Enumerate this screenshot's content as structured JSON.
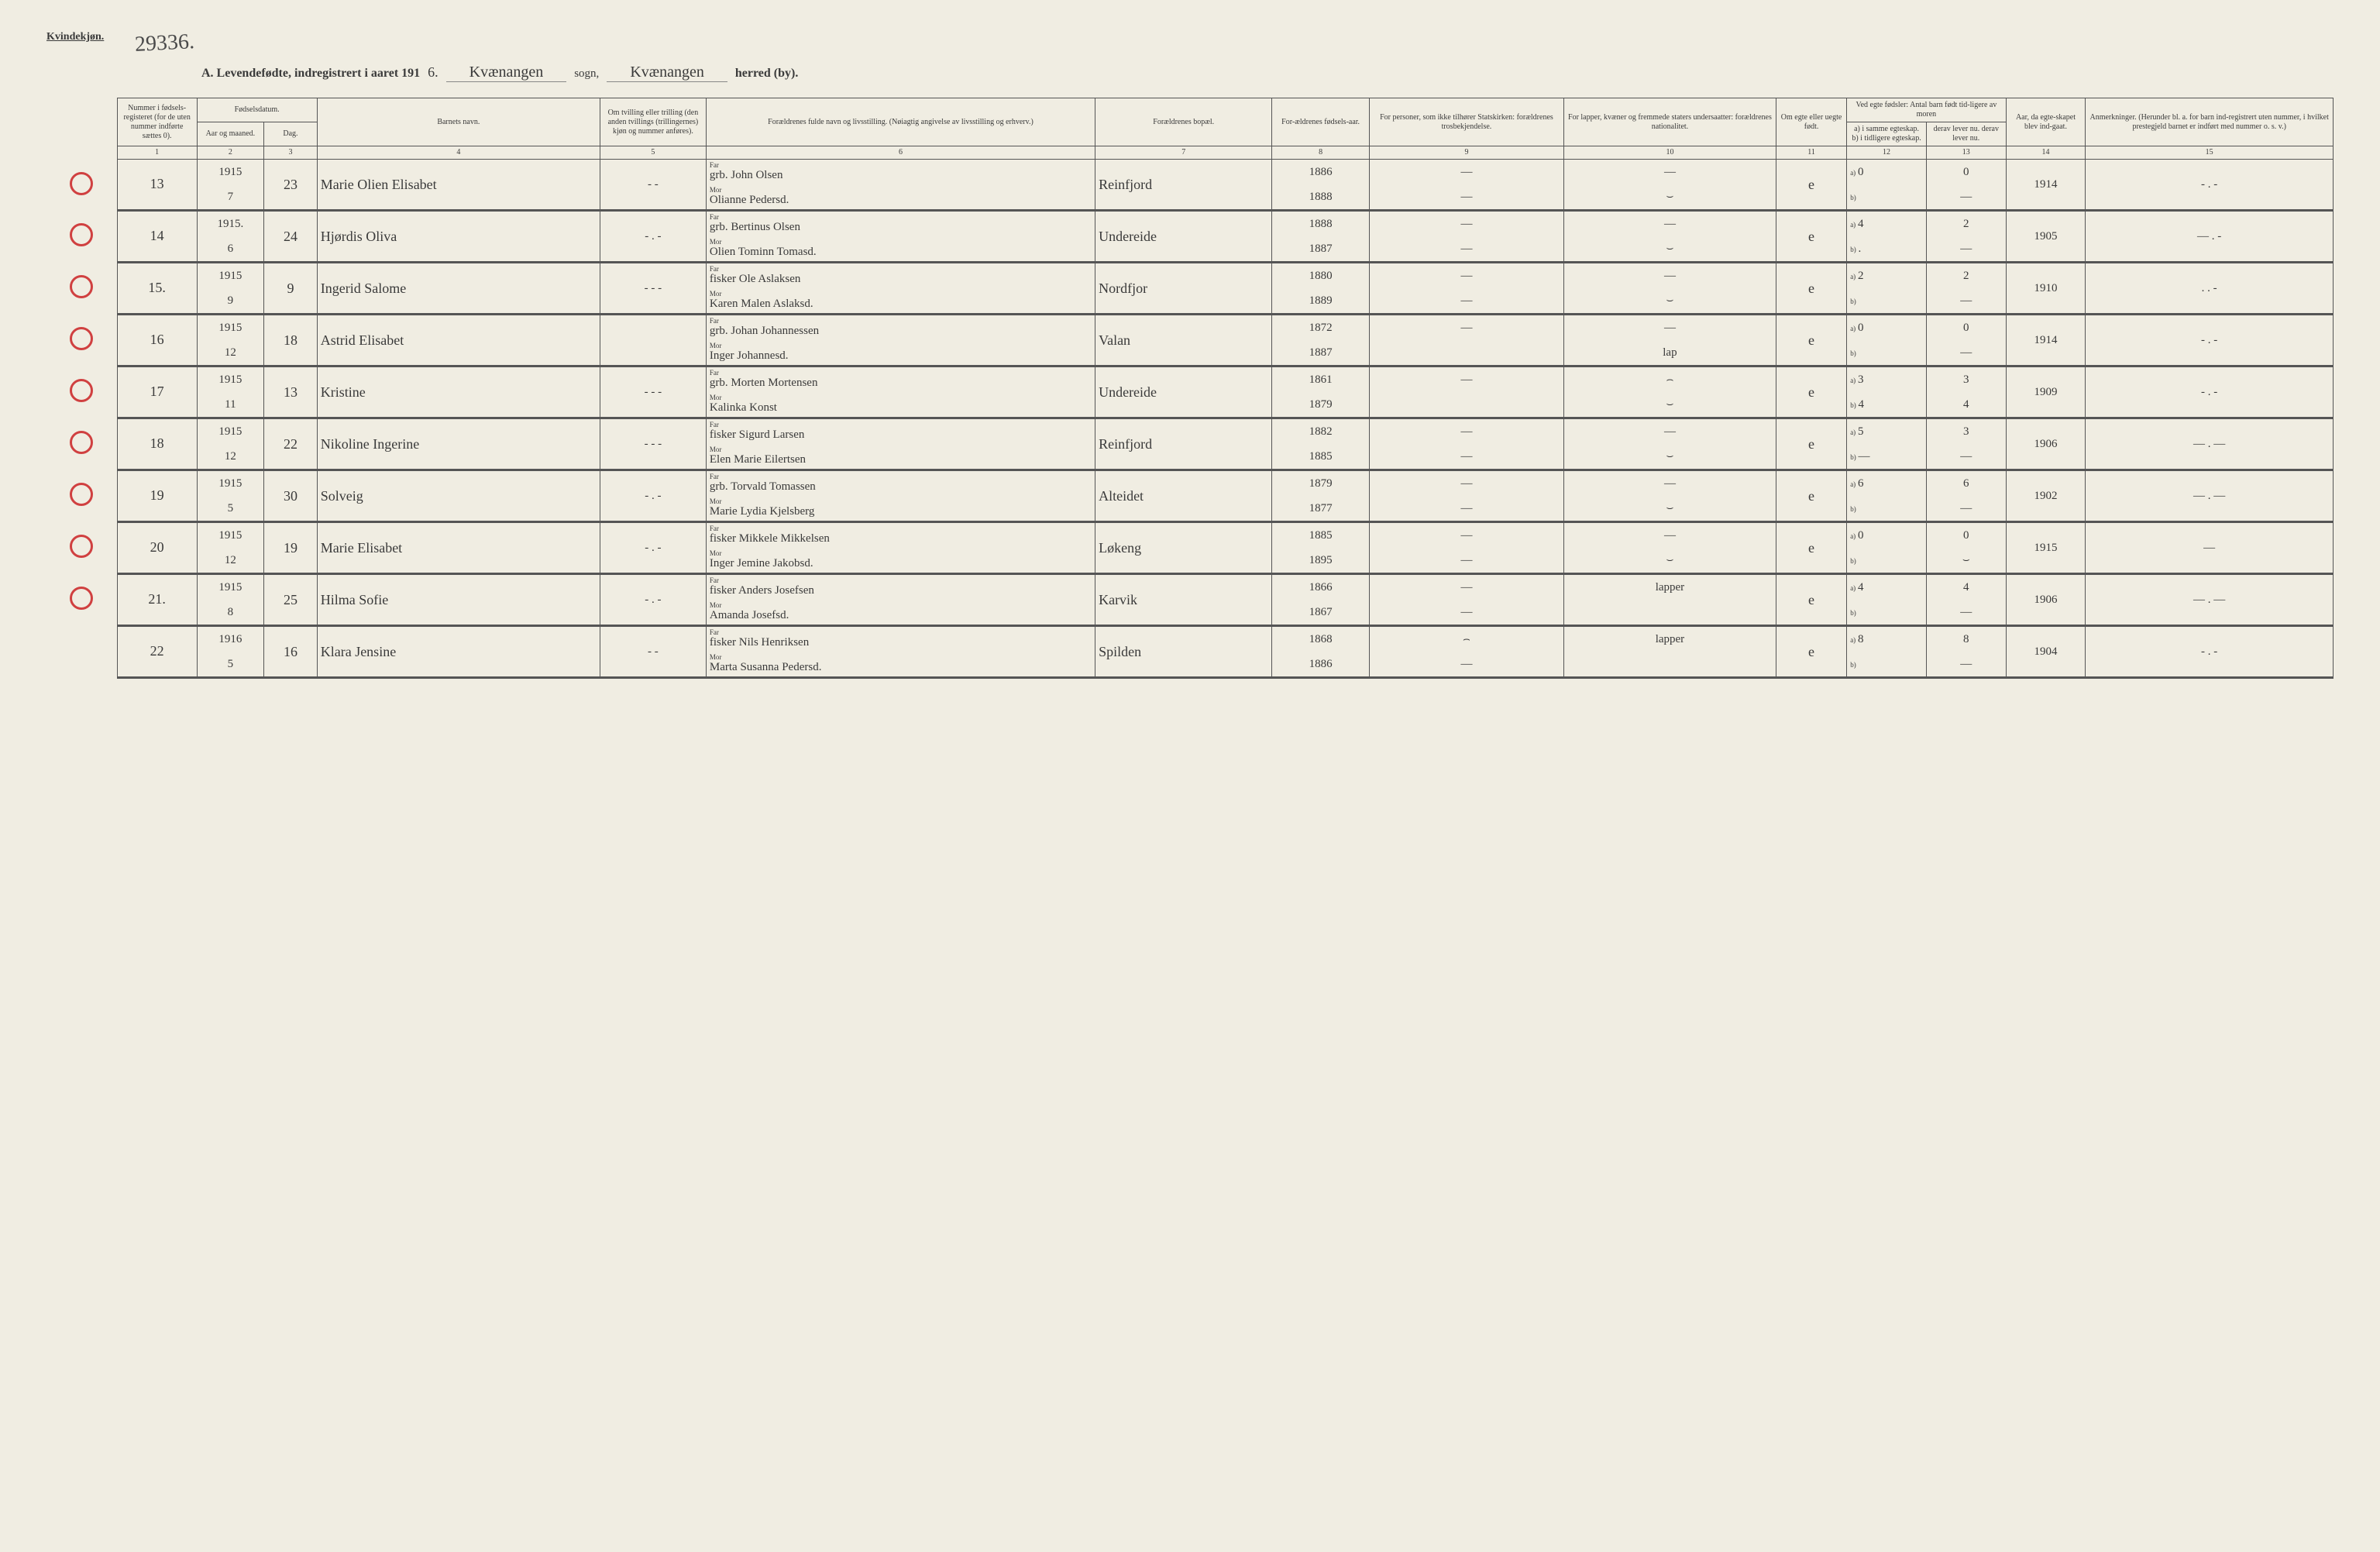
{
  "header": {
    "kvindekjon": "Kvindekjøn.",
    "stamp_number": "29336.",
    "title_prefix": "A.  Levendefødte, indregistrert i aaret 191",
    "year_suffix": "6.",
    "sogn_value": "Kvænangen",
    "sogn_label": "sogn,",
    "herred_value": "Kvænangen",
    "herred_label": "herred (by)."
  },
  "columns": {
    "c1": "Nummer i fødsels-registeret (for de uten nummer indførte sættes 0).",
    "c2_group": "Fødselsdatum.",
    "c2": "Aar og maaned.",
    "c3": "Dag.",
    "c4": "Barnets navn.",
    "c5": "Om tvilling eller trilling (den anden tvillings (trillingernes) kjøn og nummer anføres).",
    "c6": "Forældrenes fulde navn og livsstilling. (Nøiagtig angivelse av livsstilling og erhverv.)",
    "c7": "Forældrenes bopæl.",
    "c8": "For-ældrenes fødsels-aar.",
    "c9": "For personer, som ikke tilhører Statskirken: forældrenes trosbekjendelse.",
    "c10": "For lapper, kvæner og fremmede staters undersaatter: forældrenes nationalitet.",
    "c11": "Om egte eller uegte født.",
    "c12_group": "Ved egte fødsler: Antal barn født tid-ligere av moren",
    "c12": "a) i samme egteskap.  b) i tidligere egteskap.",
    "c13": "derav lever nu.  derav lever nu.",
    "c14": "Aar, da egte-skapet blev ind-gaat.",
    "c15": "Anmerkninger. (Herunder bl. a. for barn ind-registrert uten nummer, i hvilket prestegjeld barnet er indført med nummer o. s. v.)"
  },
  "colnums": [
    "1",
    "2",
    "3",
    "4",
    "5",
    "6",
    "7",
    "8",
    "9",
    "10",
    "11",
    "12",
    "13",
    "14",
    "15"
  ],
  "far_label": "Far",
  "mor_label": "Mor",
  "a_label": "a)",
  "b_label": "b)",
  "rows": [
    {
      "num": "13",
      "year": "1915",
      "month": "7",
      "day": "23",
      "name": "Marie Olien Elisabet",
      "twin": "- -",
      "far": "grb. John Olsen",
      "mor": "Olianne Pedersd.",
      "bopael": "Reinfjord",
      "far_aar": "1886",
      "mor_aar": "1888",
      "c9f": "—",
      "c9m": "—",
      "c10f": "—",
      "c10m": "⌣",
      "egte": "e",
      "a12": "0",
      "a13": "0",
      "b12": "",
      "b13": "—",
      "c14": "1914",
      "c15": "- . -",
      "circle": true
    },
    {
      "num": "14",
      "year": "1915.",
      "month": "6",
      "day": "24",
      "name": "Hjørdis Oliva",
      "twin": "- . -",
      "far": "grb. Bertinus Olsen",
      "mor": "Olien Tominn Tomasd.",
      "bopael": "Undereide",
      "far_aar": "1888",
      "mor_aar": "1887",
      "c9f": "—",
      "c9m": "—",
      "c10f": "—",
      "c10m": "⌣",
      "egte": "e",
      "a12": "4",
      "a13": "2",
      "b12": ".",
      "b13": "—",
      "c14": "1905",
      "c15": "— . -",
      "circle": true
    },
    {
      "num": "15.",
      "year": "1915",
      "month": "9",
      "day": "9",
      "name": "Ingerid Salome",
      "twin": "- - -",
      "far": "fisker Ole Aslaksen",
      "mor": "Karen Malen Aslaksd.",
      "bopael": "Nordfjor",
      "far_aar": "1880",
      "mor_aar": "1889",
      "c9f": "—",
      "c9m": "—",
      "c10f": "—",
      "c10m": "⌣",
      "egte": "e",
      "a12": "2",
      "a13": "2",
      "b12": "",
      "b13": "—",
      "c14": "1910",
      "c15": ". . -",
      "circle": true
    },
    {
      "num": "16",
      "year": "1915",
      "month": "12",
      "day": "18",
      "name": "Astrid Elisabet",
      "twin": "",
      "far": "grb. Johan Johannessen",
      "mor": "Inger Johannesd.",
      "bopael": "Valan",
      "far_aar": "1872",
      "mor_aar": "1887",
      "c9f": "—",
      "c9m": "",
      "c10f": "—",
      "c10m": "lap",
      "egte": "e",
      "a12": "0",
      "a13": "0",
      "b12": "",
      "b13": "—",
      "c14": "1914",
      "c15": "- . -",
      "circle": true
    },
    {
      "num": "17",
      "year": "1915",
      "month": "11",
      "day": "13",
      "name": "Kristine",
      "twin": "- - -",
      "far": "grb. Morten Mortensen",
      "mor": "Kalinka Konst",
      "bopael": "Undereide",
      "far_aar": "1861",
      "mor_aar": "1879",
      "c9f": "—",
      "c9m": "",
      "c10f": "⌢",
      "c10m": "⌣",
      "egte": "e",
      "a12": "3",
      "a13": "3",
      "b12": "4",
      "b13": "4",
      "c14": "1909",
      "c15": "- . -",
      "circle": true
    },
    {
      "num": "18",
      "year": "1915",
      "month": "12",
      "day": "22",
      "name": "Nikoline Ingerine",
      "twin": "- - -",
      "far": "fisker Sigurd Larsen",
      "mor": "Elen Marie Eilertsen",
      "bopael": "Reinfjord",
      "far_aar": "1882",
      "mor_aar": "1885",
      "c9f": "—",
      "c9m": "—",
      "c10f": "—",
      "c10m": "⌣",
      "egte": "e",
      "a12": "5",
      "a13": "3",
      "b12": "—",
      "b13": "—",
      "c14": "1906",
      "c15": "— . —",
      "circle": true
    },
    {
      "num": "19",
      "year": "1915",
      "month": "5",
      "day": "30",
      "name": "Solveig",
      "twin": "- . -",
      "far": "grb. Torvald Tomassen",
      "mor": "Marie Lydia Kjelsberg",
      "bopael": "Alteidet",
      "far_aar": "1879",
      "mor_aar": "1877",
      "c9f": "—",
      "c9m": "—",
      "c10f": "—",
      "c10m": "⌣",
      "egte": "e",
      "a12": "6",
      "a13": "6",
      "b12": "",
      "b13": "—",
      "c14": "1902",
      "c15": "— . —",
      "circle": true
    },
    {
      "num": "20",
      "year": "1915",
      "month": "12",
      "day": "19",
      "name": "Marie Elisabet",
      "twin": "- . -",
      "far": "fisker Mikkele Mikkelsen",
      "mor": "Inger Jemine Jakobsd.",
      "bopael": "Løkeng",
      "far_aar": "1885",
      "mor_aar": "1895",
      "c9f": "—",
      "c9m": "—",
      "c10f": "—",
      "c10m": "⌣",
      "egte": "e",
      "a12": "0",
      "a13": "0",
      "b12": "",
      "b13": "⌣",
      "c14": "1915",
      "c15": "—",
      "circle": true
    },
    {
      "num": "21.",
      "year": "1915",
      "month": "8",
      "day": "25",
      "name": "Hilma Sofie",
      "twin": "- . -",
      "far": "fisker Anders Josefsen",
      "mor": "Amanda Josefsd.",
      "bopael": "Karvik",
      "far_aar": "1866",
      "mor_aar": "1867",
      "c9f": "—",
      "c9m": "—",
      "c10f": "lapper",
      "c10m": "",
      "egte": "e",
      "a12": "4",
      "a13": "4",
      "b12": "",
      "b13": "—",
      "c14": "1906",
      "c15": "— . —",
      "circle": true
    },
    {
      "num": "22",
      "year": "1916",
      "month": "5",
      "day": "16",
      "name": "Klara Jensine",
      "twin": "- -",
      "far": "fisker Nils Henriksen",
      "mor": "Marta Susanna Pedersd.",
      "bopael": "Spilden",
      "far_aar": "1868",
      "mor_aar": "1886",
      "c9f": "⌢",
      "c9m": "—",
      "c10f": "lapper",
      "c10m": "",
      "egte": "e",
      "a12": "8",
      "a13": "8",
      "b12": "",
      "b13": "—",
      "c14": "1904",
      "c15": "- . -",
      "circle": false
    }
  ],
  "style": {
    "background": "#f0ede2",
    "border_color": "#555555",
    "text_color": "#3a3a3a",
    "circle_color": "#d04040",
    "handwriting_font": "Brush Script MT"
  }
}
